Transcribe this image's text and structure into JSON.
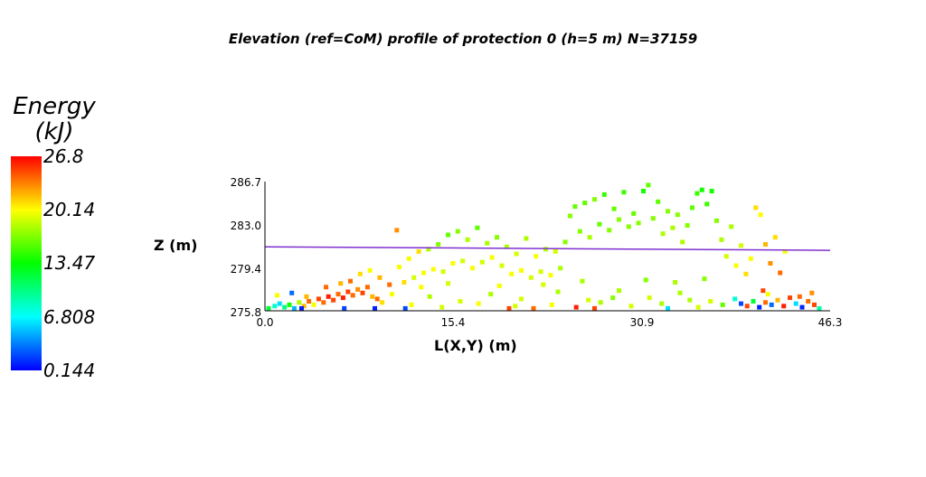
{
  "chart_data": {
    "type": "scatter",
    "title": "Elevation (ref=CoM) profile of protection 0 (h=5 m) N=37159",
    "xlabel": "L(X,Y) (m)",
    "ylabel": "Z (m)",
    "xlim": [
      0.0,
      46.3
    ],
    "ylim": [
      275.8,
      286.7
    ],
    "xticks": [
      "0.0",
      "15.4",
      "30.9",
      "46.3"
    ],
    "yticks": [
      "275.8",
      "279.4",
      "283.0",
      "286.7"
    ],
    "grid": false,
    "colorbar": {
      "title_line1": "Energy",
      "title_line2": "(kJ)",
      "min": 0.144,
      "max": 26.8,
      "ticks": [
        "26.8",
        "20.14",
        "13.47",
        "6.808",
        "0.144"
      ],
      "colors": [
        "#ff0000",
        "#ffff00",
        "#00ff00",
        "#00ffff",
        "#0000ff"
      ]
    },
    "reference_line": {
      "color": "#7f2fd0",
      "points": [
        [
          0.0,
          281.2
        ],
        [
          46.3,
          280.9
        ]
      ]
    },
    "points": [
      [
        0.3,
        276.0,
        12
      ],
      [
        0.8,
        276.2,
        8
      ],
      [
        1.2,
        276.4,
        6
      ],
      [
        1.6,
        276.1,
        10
      ],
      [
        2.0,
        276.3,
        14
      ],
      [
        2.4,
        276.0,
        5
      ],
      [
        2.8,
        276.5,
        18
      ],
      [
        3.2,
        276.2,
        22
      ],
      [
        3.6,
        276.6,
        24
      ],
      [
        4.0,
        276.3,
        20
      ],
      [
        4.4,
        276.8,
        25
      ],
      [
        4.8,
        276.5,
        24
      ],
      [
        5.2,
        277.0,
        26
      ],
      [
        5.6,
        276.7,
        25
      ],
      [
        6.0,
        277.2,
        24
      ],
      [
        6.4,
        276.9,
        26
      ],
      [
        6.8,
        277.4,
        25
      ],
      [
        7.2,
        277.1,
        24
      ],
      [
        7.6,
        277.6,
        23
      ],
      [
        8.0,
        277.3,
        25
      ],
      [
        8.4,
        277.8,
        24
      ],
      [
        8.8,
        277.0,
        22
      ],
      [
        9.2,
        276.8,
        24
      ],
      [
        9.6,
        276.5,
        21
      ],
      [
        1.0,
        277.1,
        20
      ],
      [
        2.2,
        277.3,
        3
      ],
      [
        3.4,
        277.0,
        22
      ],
      [
        5.0,
        277.8,
        24
      ],
      [
        6.2,
        278.1,
        22
      ],
      [
        7.0,
        278.3,
        24
      ],
      [
        7.8,
        278.9,
        21
      ],
      [
        8.6,
        279.2,
        20
      ],
      [
        9.4,
        278.6,
        22
      ],
      [
        10.2,
        278.0,
        24
      ],
      [
        10.8,
        282.6,
        23
      ],
      [
        10.4,
        277.2,
        20
      ],
      [
        11.0,
        279.5,
        20
      ],
      [
        11.4,
        278.2,
        21
      ],
      [
        11.8,
        280.2,
        20
      ],
      [
        12.2,
        278.6,
        19
      ],
      [
        12.6,
        280.8,
        21
      ],
      [
        13.0,
        279.0,
        20
      ],
      [
        13.4,
        281.0,
        18
      ],
      [
        13.8,
        279.3,
        20
      ],
      [
        14.2,
        281.4,
        17
      ],
      [
        14.6,
        279.1,
        19
      ],
      [
        15.0,
        282.2,
        16
      ],
      [
        15.4,
        279.8,
        20
      ],
      [
        15.8,
        282.5,
        17
      ],
      [
        16.2,
        280.0,
        19
      ],
      [
        16.6,
        281.8,
        18
      ],
      [
        17.0,
        279.4,
        20
      ],
      [
        17.4,
        282.8,
        16
      ],
      [
        17.8,
        279.9,
        19
      ],
      [
        18.2,
        281.5,
        18
      ],
      [
        18.6,
        280.3,
        20
      ],
      [
        19.0,
        282.0,
        17
      ],
      [
        19.4,
        279.6,
        19
      ],
      [
        19.8,
        281.2,
        18
      ],
      [
        20.2,
        278.9,
        20
      ],
      [
        20.6,
        280.6,
        19
      ],
      [
        21.0,
        279.2,
        20
      ],
      [
        21.4,
        281.9,
        18
      ],
      [
        21.8,
        278.6,
        19
      ],
      [
        22.2,
        280.4,
        20
      ],
      [
        22.6,
        279.1,
        19
      ],
      [
        23.0,
        281.0,
        18
      ],
      [
        23.4,
        278.8,
        20
      ],
      [
        23.8,
        280.8,
        19
      ],
      [
        24.2,
        279.4,
        18
      ],
      [
        24.6,
        281.6,
        17
      ],
      [
        25.0,
        283.8,
        17
      ],
      [
        25.4,
        284.6,
        16
      ],
      [
        25.8,
        282.5,
        17
      ],
      [
        26.2,
        284.9,
        16
      ],
      [
        26.6,
        282.0,
        18
      ],
      [
        27.0,
        285.2,
        17
      ],
      [
        27.4,
        283.1,
        16
      ],
      [
        27.8,
        285.6,
        15
      ],
      [
        28.2,
        282.6,
        17
      ],
      [
        28.6,
        284.4,
        16
      ],
      [
        29.0,
        283.5,
        17
      ],
      [
        29.4,
        285.8,
        15
      ],
      [
        29.8,
        282.9,
        17
      ],
      [
        30.2,
        284.0,
        16
      ],
      [
        30.6,
        283.2,
        17
      ],
      [
        31.0,
        285.9,
        14
      ],
      [
        31.4,
        286.4,
        16
      ],
      [
        31.8,
        283.6,
        17
      ],
      [
        32.2,
        285.0,
        16
      ],
      [
        32.6,
        282.3,
        18
      ],
      [
        33.0,
        284.2,
        17
      ],
      [
        33.4,
        282.8,
        18
      ],
      [
        33.8,
        283.9,
        17
      ],
      [
        34.2,
        281.6,
        18
      ],
      [
        34.6,
        283.0,
        17
      ],
      [
        35.0,
        284.5,
        16
      ],
      [
        35.4,
        285.7,
        15
      ],
      [
        35.8,
        286.0,
        14
      ],
      [
        36.2,
        284.8,
        15
      ],
      [
        36.6,
        285.9,
        14
      ],
      [
        37.0,
        283.4,
        17
      ],
      [
        37.4,
        281.8,
        18
      ],
      [
        37.8,
        280.4,
        19
      ],
      [
        38.2,
        282.9,
        18
      ],
      [
        38.6,
        279.6,
        20
      ],
      [
        39.0,
        281.3,
        19
      ],
      [
        39.4,
        278.9,
        21
      ],
      [
        39.8,
        280.2,
        20
      ],
      [
        40.2,
        284.5,
        21
      ],
      [
        40.6,
        283.9,
        20
      ],
      [
        41.0,
        281.4,
        22
      ],
      [
        41.4,
        279.8,
        23
      ],
      [
        41.8,
        282.0,
        21
      ],
      [
        42.2,
        279.0,
        24
      ],
      [
        42.6,
        280.8,
        20
      ],
      [
        13.5,
        277.0,
        18
      ],
      [
        16.0,
        276.6,
        19
      ],
      [
        18.5,
        277.2,
        18
      ],
      [
        21.0,
        276.8,
        19
      ],
      [
        24.0,
        277.4,
        18
      ],
      [
        26.5,
        276.7,
        19
      ],
      [
        29.0,
        277.5,
        18
      ],
      [
        31.5,
        276.9,
        19
      ],
      [
        34.0,
        277.3,
        18
      ],
      [
        36.5,
        276.6,
        19
      ],
      [
        12.0,
        276.3,
        20
      ],
      [
        14.5,
        276.1,
        19
      ],
      [
        17.5,
        276.4,
        20
      ],
      [
        20.5,
        276.2,
        19
      ],
      [
        23.5,
        276.3,
        20
      ],
      [
        25.5,
        276.1,
        26
      ],
      [
        27.5,
        276.5,
        18
      ],
      [
        30.0,
        276.2,
        19
      ],
      [
        32.5,
        276.4,
        18
      ],
      [
        35.5,
        276.1,
        19
      ],
      [
        37.5,
        276.3,
        16
      ],
      [
        38.5,
        276.8,
        8
      ],
      [
        39.0,
        276.4,
        2
      ],
      [
        39.5,
        276.2,
        25
      ],
      [
        40.0,
        276.6,
        12
      ],
      [
        40.5,
        276.1,
        1
      ],
      [
        41.0,
        276.5,
        24
      ],
      [
        41.5,
        276.3,
        3
      ],
      [
        42.0,
        276.7,
        22
      ],
      [
        42.5,
        276.2,
        26
      ],
      [
        43.0,
        276.9,
        25
      ],
      [
        43.5,
        276.4,
        6
      ],
      [
        44.0,
        276.1,
        1
      ],
      [
        44.5,
        276.6,
        24
      ],
      [
        45.0,
        276.3,
        25
      ],
      [
        45.4,
        276.0,
        9
      ],
      [
        44.8,
        277.3,
        23
      ],
      [
        43.8,
        277.0,
        24
      ],
      [
        41.2,
        277.2,
        20
      ],
      [
        40.8,
        277.5,
        25
      ],
      [
        20.0,
        276.0,
        25
      ],
      [
        22.0,
        276.0,
        24
      ],
      [
        27.0,
        276.0,
        25
      ],
      [
        33.0,
        276.0,
        6
      ],
      [
        3.0,
        276.0,
        1
      ],
      [
        6.5,
        276.0,
        2
      ],
      [
        9.0,
        276.0,
        1
      ],
      [
        11.5,
        276.0,
        2
      ],
      [
        28.5,
        276.9,
        17
      ],
      [
        34.8,
        276.7,
        18
      ],
      [
        15.0,
        278.1,
        19
      ],
      [
        19.2,
        277.9,
        20
      ],
      [
        22.8,
        278.0,
        19
      ],
      [
        26.0,
        278.3,
        18
      ],
      [
        31.2,
        278.4,
        17
      ],
      [
        33.6,
        278.2,
        18
      ],
      [
        36.0,
        278.5,
        17
      ],
      [
        12.8,
        277.8,
        20
      ]
    ]
  }
}
